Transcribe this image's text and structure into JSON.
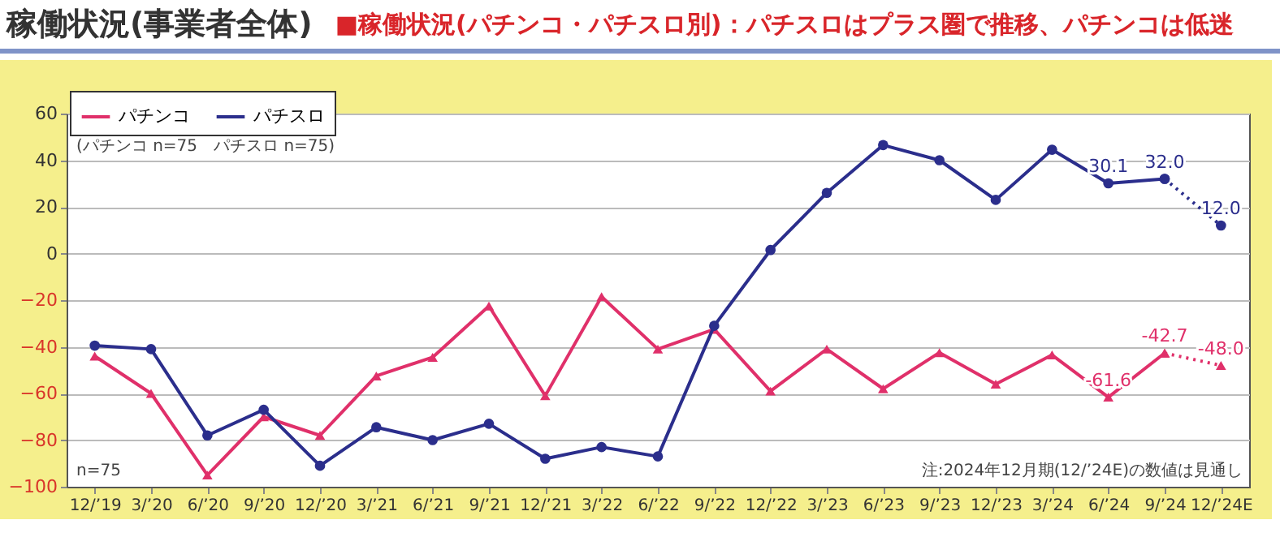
{
  "chart_data": {
    "type": "line",
    "title": "稼働状況(事業者全体)",
    "subtitle": "■稼働状況(パチンコ・パチスロ別)：パチスロはプラス圏で推移、パチンコは低迷",
    "categories": [
      "12/’19",
      "3/’20",
      "6/’20",
      "9/’20",
      "12/’20",
      "3/’21",
      "6/’21",
      "9/’21",
      "12/’21",
      "3/’22",
      "6/’22",
      "9/’22",
      "12/’22",
      "3/’23",
      "6/’23",
      "9/’23",
      "12/’23",
      "3/’24",
      "6/’24",
      "9/’24",
      "12/’24E"
    ],
    "series": [
      {
        "name": "パチンコ",
        "color": "#e0306a",
        "marker": "triangle",
        "values": [
          -44,
          -60,
          -95,
          -70,
          -78,
          -52.5,
          -44.5,
          -22.5,
          -61,
          -18.5,
          -41,
          -32.5,
          -59,
          -41,
          -58,
          -42.5,
          -56,
          -43.5,
          -61.6,
          -42.7,
          null
        ],
        "value_labels": [
          null,
          null,
          null,
          null,
          null,
          null,
          null,
          null,
          null,
          null,
          null,
          null,
          null,
          null,
          null,
          null,
          null,
          null,
          "-61.6",
          "-42.7",
          null
        ]
      },
      {
        "name": "パチスロ",
        "color": "#2b2e8c",
        "marker": "circle",
        "values": [
          -39.5,
          -41,
          -78,
          -67,
          -91,
          -74.5,
          -80,
          -73,
          -88,
          -83,
          -87,
          -31,
          1.5,
          26,
          46.5,
          40,
          23,
          44.5,
          30.1,
          32.0,
          null
        ],
        "value_labels": [
          null,
          null,
          null,
          null,
          null,
          null,
          null,
          null,
          null,
          null,
          null,
          null,
          null,
          null,
          null,
          null,
          null,
          null,
          "30.1",
          "32.0",
          null
        ]
      },
      {
        "color": "#e0306a",
        "marker": "triangle",
        "line_style": "dotted",
        "values": [
          null,
          null,
          null,
          null,
          null,
          null,
          null,
          null,
          null,
          null,
          null,
          null,
          null,
          null,
          null,
          null,
          null,
          null,
          null,
          -42.7,
          -48.0
        ],
        "value_labels": [
          null,
          null,
          null,
          null,
          null,
          null,
          null,
          null,
          null,
          null,
          null,
          null,
          null,
          null,
          null,
          null,
          null,
          null,
          null,
          null,
          "-48.0"
        ]
      },
      {
        "color": "#2b2e8c",
        "marker": "circle",
        "line_style": "dotted",
        "values": [
          null,
          null,
          null,
          null,
          null,
          null,
          null,
          null,
          null,
          null,
          null,
          null,
          null,
          null,
          null,
          null,
          null,
          null,
          null,
          32.0,
          12.0
        ],
        "value_labels": [
          null,
          null,
          null,
          null,
          null,
          null,
          null,
          null,
          null,
          null,
          null,
          null,
          null,
          null,
          null,
          null,
          null,
          null,
          null,
          null,
          "12.0"
        ]
      }
    ],
    "ylim": [
      -100,
      60
    ],
    "yticks": [
      -100,
      -80,
      -60,
      -40,
      -20,
      0,
      20,
      40,
      60
    ],
    "grid": "y",
    "legend": "top left",
    "annotations": [
      "(パチンコ n=75　パチスロ n=75)",
      "n=75",
      "注:2024年12月期(12/’24E)の数値は見通し"
    ]
  }
}
